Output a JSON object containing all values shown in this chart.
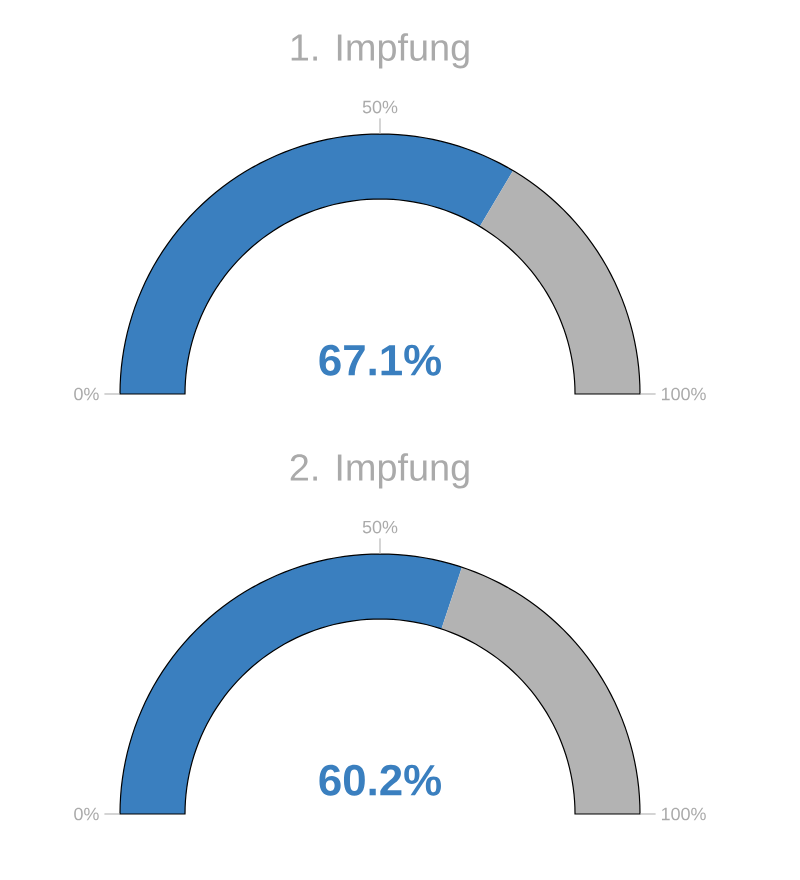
{
  "chart_data": [
    {
      "type": "donut",
      "title": "1. Impfung",
      "categories": [
        null,
        null
      ],
      "values": [
        67.1,
        32.9
      ],
      "colors": [
        "#3a7fbf",
        "#b3b3b3"
      ],
      "value_labels": [
        "67.1%",
        null
      ],
      "annotations": [
        "0%",
        "50%",
        "100%"
      ]
    },
    {
      "type": "donut",
      "title": "2. Impfung",
      "categories": [
        null,
        null
      ],
      "values": [
        60.2,
        39.8
      ],
      "colors": [
        "#3a7fbf",
        "#b3b3b3"
      ],
      "value_labels": [
        "60.2%",
        null
      ],
      "annotations": [
        "0%",
        "50%",
        "100%"
      ]
    }
  ]
}
